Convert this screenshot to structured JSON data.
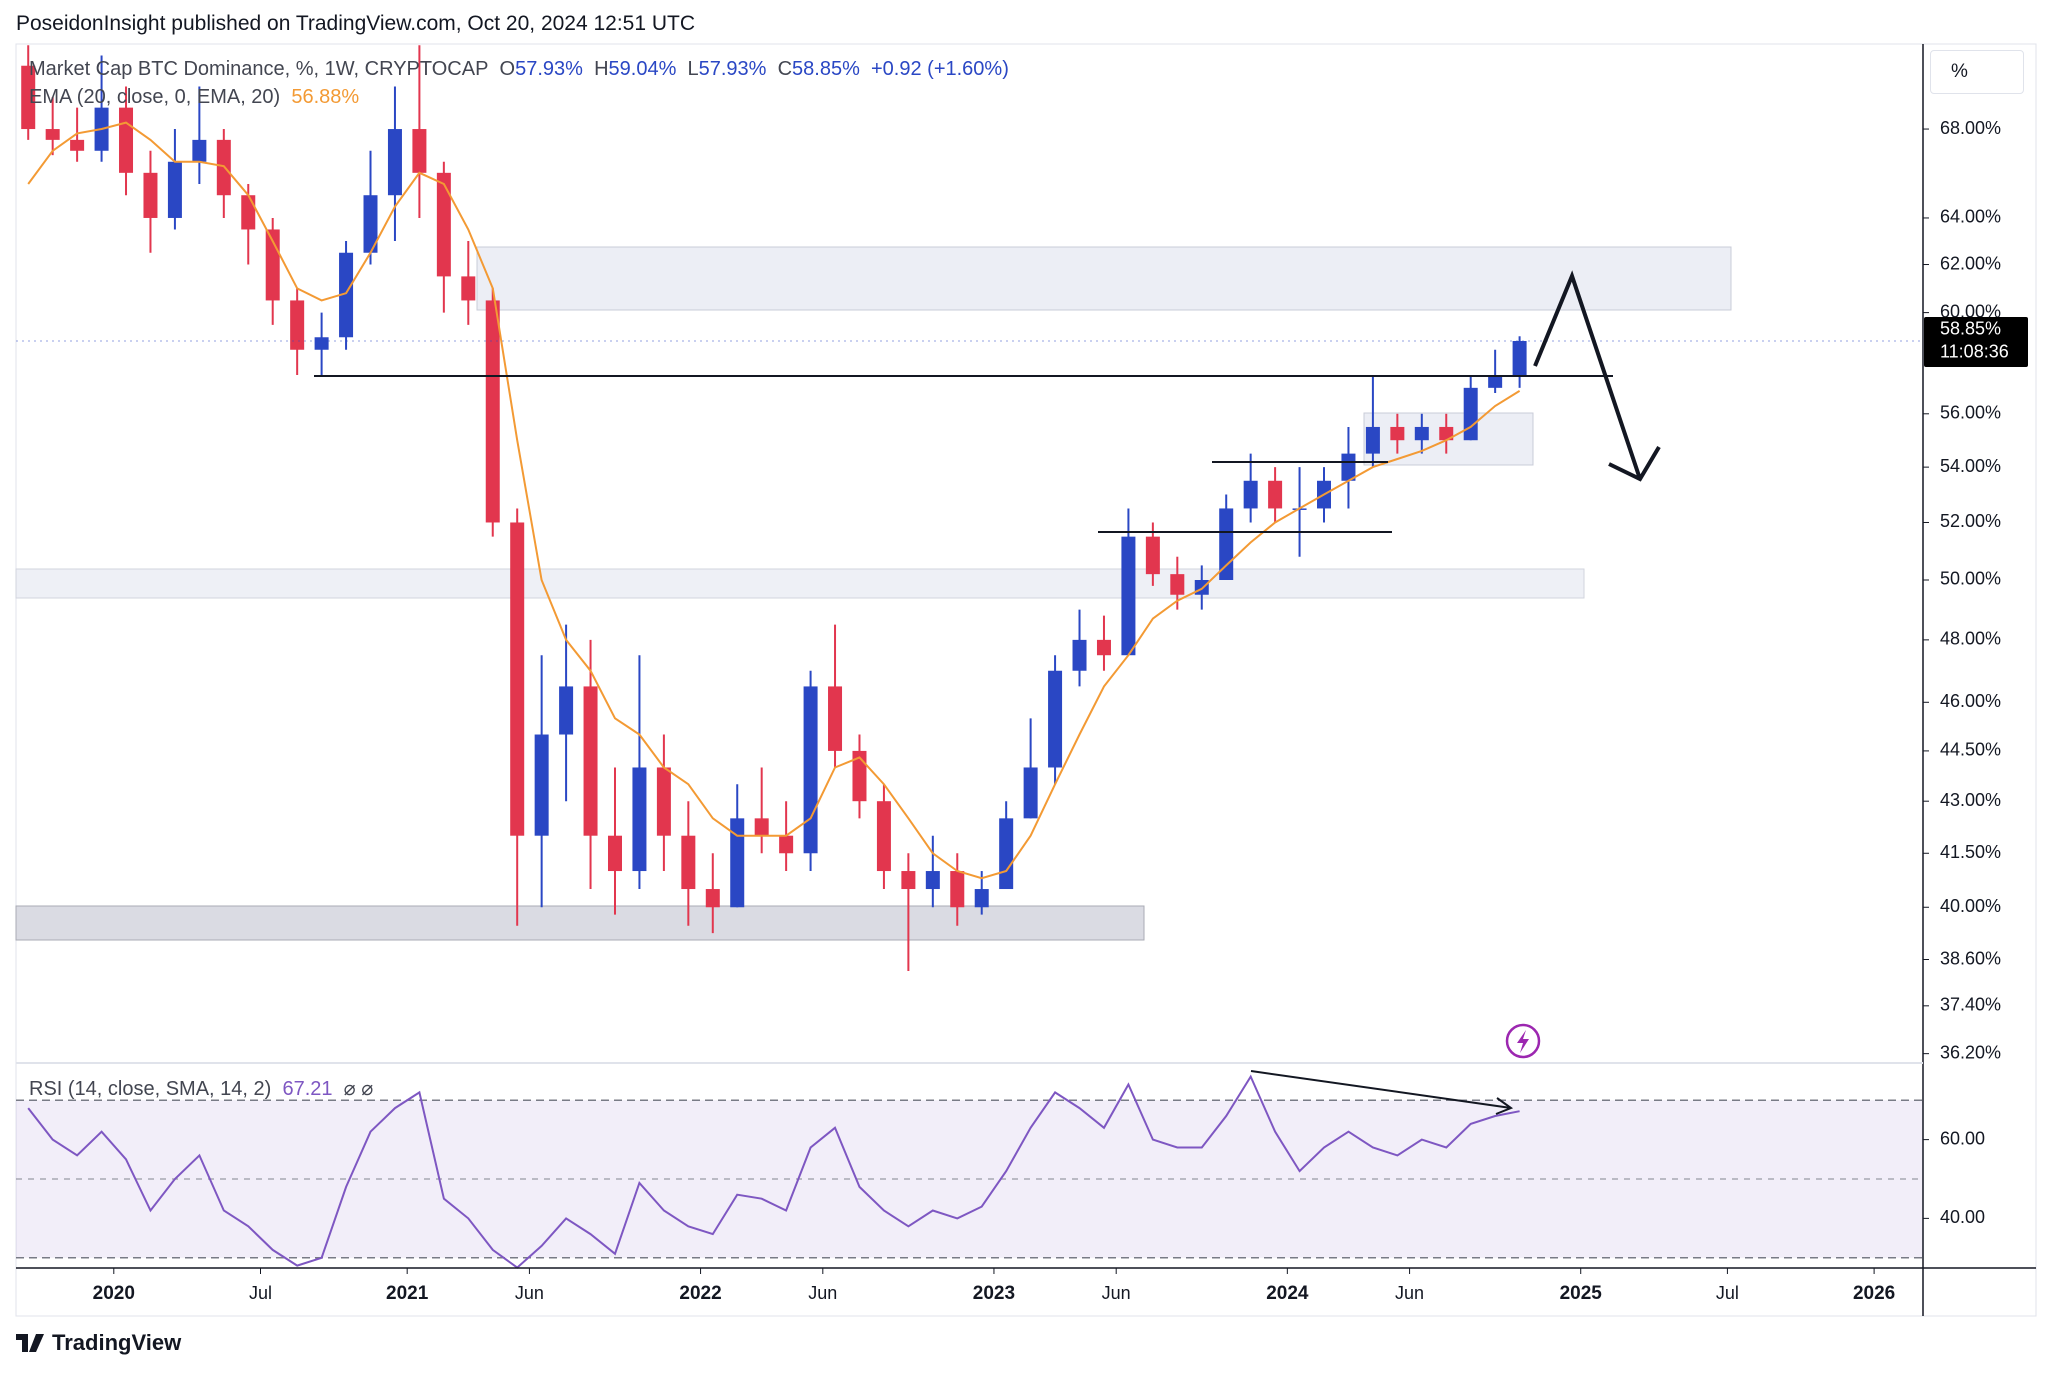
{
  "header": {
    "text": "PoseidonInsight published on TradingView.com, Oct 20, 2024 12:51 UTC"
  },
  "footer": {
    "brand": "TradingView"
  },
  "chart_data": [
    {
      "type": "candlestick",
      "title": "Market Cap BTC Dominance, %, 1W, CRYPTOCAP",
      "legend_ohlc": [
        {
          "key": "O",
          "label": "57.93%"
        },
        {
          "key": "H",
          "label": "59.04%"
        },
        {
          "key": "L",
          "label": "57.93%"
        },
        {
          "key": "C",
          "label": "58.85%"
        }
      ],
      "change": "+0.92 (+1.60%)",
      "x": [
        "2019-09",
        "2019-10",
        "2019-11",
        "2019-12",
        "2020-01",
        "2020-02",
        "2020-03",
        "2020-04",
        "2020-05",
        "2020-06",
        "2020-07",
        "2020-08",
        "2020-09",
        "2020-10",
        "2020-11",
        "2020-12",
        "2021-01",
        "2021-02",
        "2021-03",
        "2021-04",
        "2021-05",
        "2021-06",
        "2021-07",
        "2021-08",
        "2021-09",
        "2021-10",
        "2021-11",
        "2021-12",
        "2022-01",
        "2022-02",
        "2022-03",
        "2022-04",
        "2022-05",
        "2022-06",
        "2022-07",
        "2022-08",
        "2022-09",
        "2022-10",
        "2022-11",
        "2022-12",
        "2023-01",
        "2023-02",
        "2023-03",
        "2023-04",
        "2023-05",
        "2023-06",
        "2023-07",
        "2023-08",
        "2023-09",
        "2023-10",
        "2023-11",
        "2023-12",
        "2024-01",
        "2024-02",
        "2024-03",
        "2024-04",
        "2024-05",
        "2024-06",
        "2024-07",
        "2024-08",
        "2024-09",
        "2024-10"
      ],
      "open": [
        71,
        68,
        67.5,
        67,
        69,
        66,
        64,
        66.5,
        67.5,
        65,
        63.5,
        60.5,
        58.5,
        59,
        62.5,
        65,
        68,
        66,
        61.5,
        60.5,
        52,
        42,
        45,
        46.5,
        42,
        41,
        44,
        42,
        40.5,
        40,
        42.5,
        42,
        41.5,
        46.5,
        44.5,
        43,
        41,
        40.5,
        41,
        40,
        40.5,
        42.5,
        44,
        47,
        48,
        47.5,
        51.5,
        50.2,
        49.5,
        50,
        52.5,
        53.5,
        52.5,
        52.5,
        53.5,
        54.5,
        55.5,
        55,
        55.5,
        55,
        57,
        57.5
      ],
      "high": [
        72,
        69.5,
        69,
        71.5,
        70,
        67,
        68,
        70,
        68,
        65.5,
        64,
        61,
        60,
        63,
        67,
        70,
        72,
        66.5,
        63,
        61,
        52.5,
        47.5,
        48.5,
        48,
        44,
        47.5,
        45,
        43,
        41.5,
        43.5,
        44,
        43,
        47,
        48.5,
        45,
        43.5,
        41.5,
        42,
        41.5,
        41,
        43,
        45.5,
        47.5,
        49,
        48.8,
        52.5,
        52,
        50.8,
        50.5,
        53,
        54.5,
        54,
        54,
        54,
        55.5,
        57.5,
        56,
        56,
        56,
        57.5,
        58.5,
        59.04
      ],
      "low": [
        67.5,
        66.8,
        66.5,
        66.5,
        65,
        62.5,
        63.5,
        65.5,
        64,
        62,
        59.5,
        57.5,
        57.5,
        58.5,
        62,
        63,
        64,
        60,
        59.5,
        51.5,
        39.5,
        40,
        43,
        40.5,
        39.8,
        40.5,
        41,
        39.5,
        39.3,
        40,
        41.5,
        41,
        41,
        44,
        42.5,
        40.5,
        38.3,
        40,
        39.5,
        39.8,
        40.5,
        42.5,
        43.5,
        46.5,
        47,
        47.5,
        49.8,
        49,
        49,
        50,
        52,
        52,
        50.8,
        52,
        52.5,
        54,
        54.5,
        54.5,
        54.5,
        55,
        56.8,
        57
      ],
      "close": [
        68,
        67.5,
        67,
        69,
        66,
        64,
        66.5,
        67.5,
        65,
        63.5,
        60.5,
        58.5,
        59,
        62.5,
        65,
        68,
        66,
        61.5,
        60.5,
        52,
        42,
        45,
        46.5,
        42,
        41,
        44,
        42,
        40.5,
        40,
        42.5,
        42,
        41.5,
        46.5,
        44.5,
        43,
        41,
        40.5,
        41,
        40,
        40.5,
        42.5,
        44,
        47,
        48,
        47.5,
        51.5,
        50.2,
        49.5,
        50,
        52.5,
        53.5,
        52.5,
        52.5,
        53.5,
        54.5,
        55.5,
        55,
        55.5,
        55,
        57,
        57.5,
        58.85
      ],
      "up_color": "#2a47c4",
      "down_color": "#e2364e",
      "series": [
        {
          "name": "EMA (20, close, 0, EMA, 20)",
          "color": "#f39a34",
          "last_label": "56.88%",
          "values": [
            65.5,
            67,
            67.8,
            68,
            68.3,
            67.5,
            66.5,
            66.5,
            66.3,
            65,
            63,
            61,
            60.5,
            60.8,
            62.5,
            64.5,
            66,
            65.5,
            63.5,
            61,
            55,
            50,
            48,
            47,
            45.5,
            45,
            44,
            43.5,
            42.5,
            42,
            42,
            42,
            42.5,
            44,
            44.3,
            43.5,
            42.5,
            41.5,
            41,
            40.8,
            41,
            42,
            43.5,
            45,
            46.5,
            47.5,
            48.7,
            49.3,
            49.7,
            50.5,
            51.3,
            52,
            52.5,
            53,
            53.5,
            54,
            54.3,
            54.6,
            55,
            55.5,
            56.3,
            56.88
          ]
        }
      ],
      "xlim": [
        "2019-09",
        "2026-03"
      ],
      "ylim": [
        35.97,
        72.06
      ],
      "log_scale": true,
      "grid": false,
      "yticks": [
        {
          "value": 68,
          "label": "68.00%"
        },
        {
          "value": 64,
          "label": "64.00%"
        },
        {
          "value": 62,
          "label": "62.00%"
        },
        {
          "value": 60,
          "label": "60.00%"
        },
        {
          "value": 56,
          "label": "56.00%"
        },
        {
          "value": 54,
          "label": "54.00%"
        },
        {
          "value": 52,
          "label": "52.00%"
        },
        {
          "value": 50,
          "label": "50.00%"
        },
        {
          "value": 48,
          "label": "48.00%"
        },
        {
          "value": 46,
          "label": "46.00%"
        },
        {
          "value": 44.5,
          "label": "44.50%"
        },
        {
          "value": 43,
          "label": "43.00%"
        },
        {
          "value": 41.5,
          "label": "41.50%"
        },
        {
          "value": 40,
          "label": "40.00%"
        },
        {
          "value": 38.6,
          "label": "38.60%"
        },
        {
          "value": 37.4,
          "label": "37.40%"
        },
        {
          "value": 36.2,
          "label": "36.20%"
        }
      ],
      "last_price": {
        "value": 58.85,
        "label": "58.85%"
      },
      "countdown": "11:08:36",
      "axis_unit": "%"
    },
    {
      "type": "line",
      "title": "RSI (14, close, SMA, 14, 2)",
      "legend_symbols": "⌀ ⌀",
      "color": "#7e57c2",
      "x": [
        "2019-09",
        "2019-10",
        "2019-11",
        "2019-12",
        "2020-01",
        "2020-02",
        "2020-03",
        "2020-04",
        "2020-05",
        "2020-06",
        "2020-07",
        "2020-08",
        "2020-09",
        "2020-10",
        "2020-11",
        "2020-12",
        "2021-01",
        "2021-02",
        "2021-03",
        "2021-04",
        "2021-05",
        "2021-06",
        "2021-07",
        "2021-08",
        "2021-09",
        "2021-10",
        "2021-11",
        "2021-12",
        "2022-01",
        "2022-02",
        "2022-03",
        "2022-04",
        "2022-05",
        "2022-06",
        "2022-07",
        "2022-08",
        "2022-09",
        "2022-10",
        "2022-11",
        "2022-12",
        "2023-01",
        "2023-02",
        "2023-03",
        "2023-04",
        "2023-05",
        "2023-06",
        "2023-07",
        "2023-08",
        "2023-09",
        "2023-10",
        "2023-11",
        "2023-12",
        "2024-01",
        "2024-02",
        "2024-03",
        "2024-04",
        "2024-05",
        "2024-06",
        "2024-07",
        "2024-08",
        "2024-09",
        "2024-10"
      ],
      "values": [
        68,
        60,
        56,
        62,
        55,
        42,
        50,
        56,
        42,
        38,
        32,
        28,
        30,
        48,
        62,
        68,
        72,
        45,
        40,
        32,
        27.5,
        33,
        40,
        36,
        31,
        49,
        42,
        38,
        36,
        46,
        45,
        42,
        58,
        63,
        48,
        42,
        38,
        42,
        40,
        43,
        52,
        63,
        72,
        68,
        63,
        74,
        60,
        58,
        58,
        66,
        76,
        62,
        52,
        58,
        62,
        58,
        56,
        60,
        58,
        64,
        66,
        67.21
      ],
      "levels": [
        70,
        50,
        30
      ],
      "xlim": [
        "2019-09",
        "2026-03"
      ],
      "ylim": [
        27.4,
        79.2
      ],
      "yticks": [
        {
          "value": 40,
          "label": "40.00"
        },
        {
          "value": 60,
          "label": "60.00"
        }
      ],
      "xticks": [
        {
          "value": "2020-01",
          "label": "2020"
        },
        {
          "value": "2020-07",
          "label": "Jul"
        },
        {
          "value": "2021-01",
          "label": "2021"
        },
        {
          "value": "2021-06",
          "label": "Jun"
        },
        {
          "value": "2022-01",
          "label": "2022"
        },
        {
          "value": "2022-06",
          "label": "Jun"
        },
        {
          "value": "2023-01",
          "label": "2023"
        },
        {
          "value": "2023-06",
          "label": "Jun"
        },
        {
          "value": "2024-01",
          "label": "2024"
        },
        {
          "value": "2024-06",
          "label": "Jun"
        },
        {
          "value": "2025-01",
          "label": "2025"
        },
        {
          "value": "2025-07",
          "label": "Jul"
        },
        {
          "value": "2026-01",
          "label": "2026"
        }
      ]
    }
  ]
}
